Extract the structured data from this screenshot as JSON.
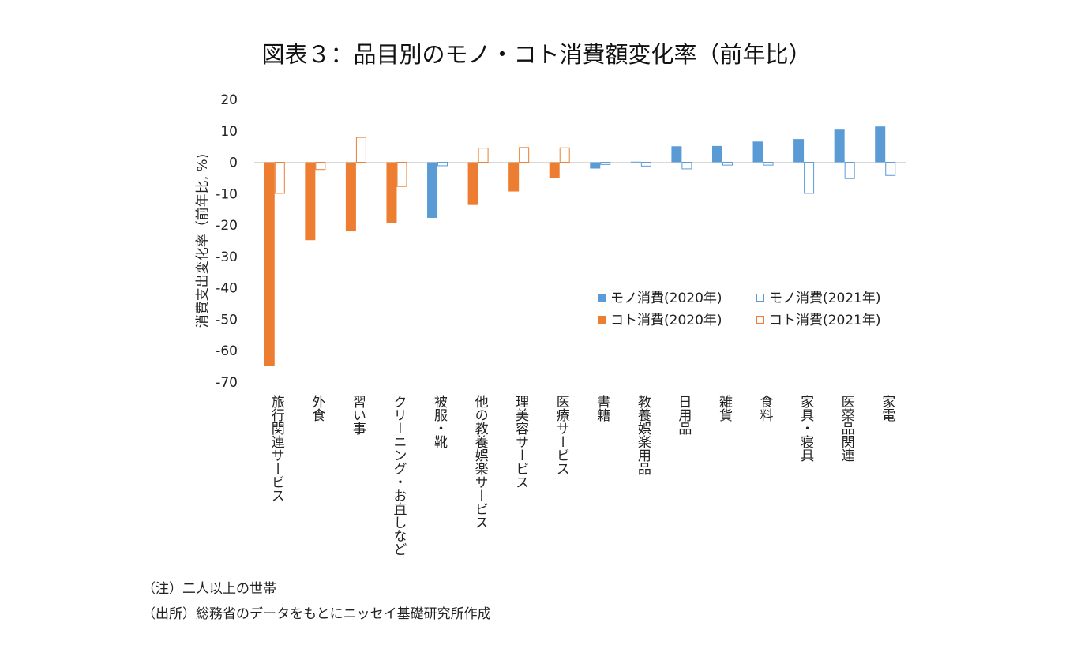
{
  "chart_data": {
    "type": "bar",
    "title": "図表３：品目別のモノ・コト消費額変化率（前年比）",
    "ylabel": "消費支出変化率（前年比, %)",
    "xlabel": "",
    "ylim": [
      -70,
      20
    ],
    "yticks": [
      20,
      10,
      0,
      -10,
      -20,
      -30,
      -40,
      -50,
      -60,
      -70
    ],
    "categories": [
      "旅行関連サービス",
      "外食",
      "習い事",
      "クリーニング・お直しなど",
      "被服・靴",
      "他の教養娯楽サービス",
      "理美容サービス",
      "医療サービス",
      "書籍",
      "教養娯楽用品",
      "日用品",
      "雑貨",
      "食料",
      "家具・寝具",
      "医薬品関連",
      "家電"
    ],
    "kinds": [
      "koto",
      "koto",
      "koto",
      "koto",
      "mono",
      "koto",
      "koto",
      "koto",
      "mono",
      "mono",
      "mono",
      "mono",
      "mono",
      "mono",
      "mono",
      "mono"
    ],
    "series": [
      {
        "name": "2020年",
        "values": [
          -64.8,
          -24.8,
          -22.0,
          -19.4,
          -17.7,
          -13.6,
          -9.3,
          -5.1,
          -2.0,
          0.2,
          5.1,
          5.2,
          6.6,
          7.4,
          10.4,
          11.4
        ]
      },
      {
        "name": "2021年",
        "values": [
          -9.9,
          -2.3,
          7.9,
          -7.7,
          -1.1,
          4.5,
          4.7,
          4.6,
          -0.7,
          -1.2,
          -2.1,
          -0.9,
          -0.9,
          -9.9,
          -5.2,
          -4.2
        ]
      }
    ],
    "legend": [
      {
        "label": "モノ消費(2020年)",
        "kind": "mono",
        "filled": true
      },
      {
        "label": "モノ消費(2021年)",
        "kind": "mono",
        "filled": false
      },
      {
        "label": "コト消費(2020年)",
        "kind": "koto",
        "filled": true
      },
      {
        "label": "コト消費(2021年)",
        "kind": "koto",
        "filled": false
      }
    ],
    "legend_position": "right",
    "colors": {
      "mono": "#5b9bd5",
      "koto": "#ed7d31",
      "axis": "#d9d9d9"
    }
  },
  "notes": {
    "note1": "（注）二人以上の世帯",
    "note2": "（出所）総務省のデータをもとにニッセイ基礎研究所作成"
  }
}
